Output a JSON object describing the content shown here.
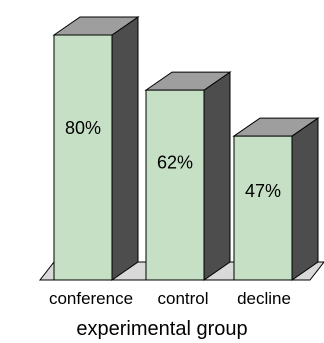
{
  "chart_data": {
    "type": "bar",
    "style": "3d",
    "categories": [
      "conference",
      "control",
      "decline"
    ],
    "values": [
      80,
      62,
      47
    ],
    "value_labels": [
      "80%",
      "62%",
      "47%"
    ],
    "unit": "%",
    "xlabel": "experimental group",
    "ylabel": "",
    "ylim": [
      0,
      100
    ],
    "grid": false,
    "legend": "none",
    "colors": {
      "front": "#c5e0c5",
      "side": "#4d4d4d",
      "top": "#9e9e9e",
      "floor": "#d9d9d9",
      "outline": "#000000"
    }
  }
}
